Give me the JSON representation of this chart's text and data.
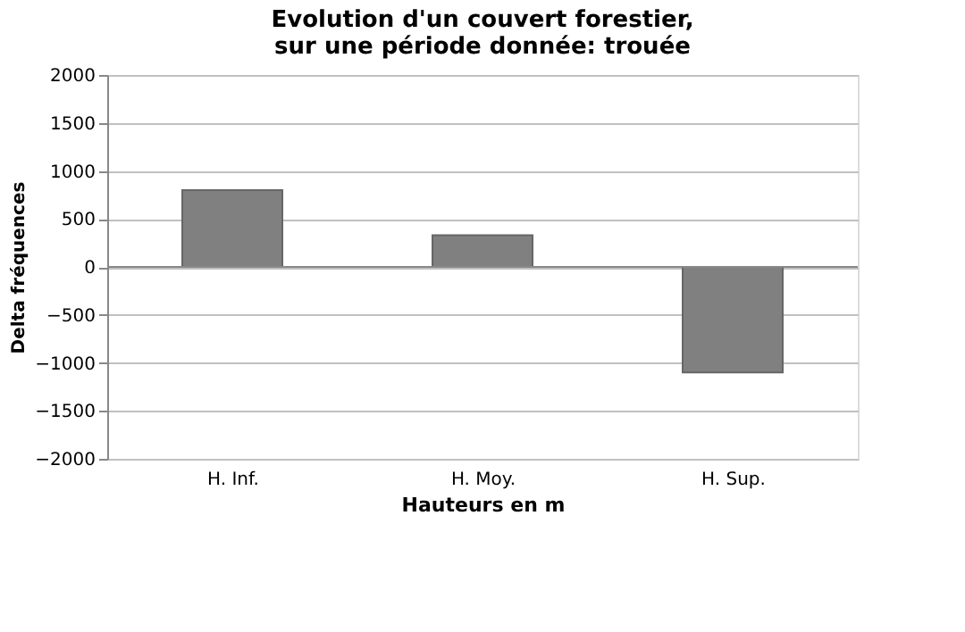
{
  "chart_data": {
    "type": "bar",
    "title": "Evolution d'un couvert forestier, sur une période donnée: trouée",
    "xlabel": "Hauteurs en m",
    "ylabel": "Delta fréquences",
    "categories": [
      "H. Inf.",
      "H. Moy.",
      "H. Sup."
    ],
    "series": [
      {
        "color": "#808080",
        "values": [
          800,
          330,
          -1100
        ]
      }
    ],
    "ylim": [
      -2000,
      2000
    ],
    "yticks": [
      -2000,
      -1500,
      -1000,
      -500,
      0,
      500,
      1000,
      1500,
      2000
    ],
    "grid": "y"
  }
}
